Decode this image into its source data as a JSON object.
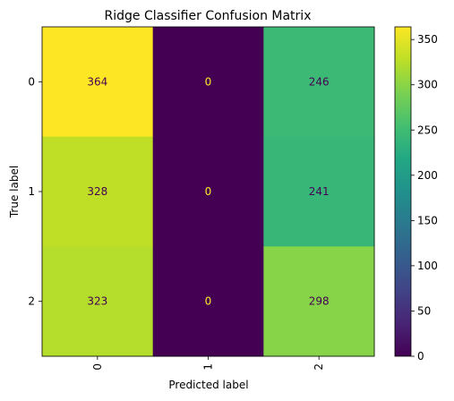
{
  "chart_data": {
    "type": "heatmap",
    "title": "Ridge Classifier Confusion Matrix",
    "xlabel": "Predicted label",
    "ylabel": "True label",
    "x_categories": [
      "0",
      "1",
      "2"
    ],
    "y_categories": [
      "0",
      "1",
      "2"
    ],
    "values": [
      [
        364,
        0,
        246
      ],
      [
        328,
        0,
        241
      ],
      [
        323,
        0,
        298
      ]
    ],
    "colormap": "viridis",
    "vmin": 0,
    "vmax": 364,
    "colorbar_ticks": [
      "0",
      "50",
      "100",
      "150",
      "200",
      "250",
      "300",
      "350"
    ],
    "text_color_dark": "#440154",
    "text_color_light": "#fde725"
  }
}
